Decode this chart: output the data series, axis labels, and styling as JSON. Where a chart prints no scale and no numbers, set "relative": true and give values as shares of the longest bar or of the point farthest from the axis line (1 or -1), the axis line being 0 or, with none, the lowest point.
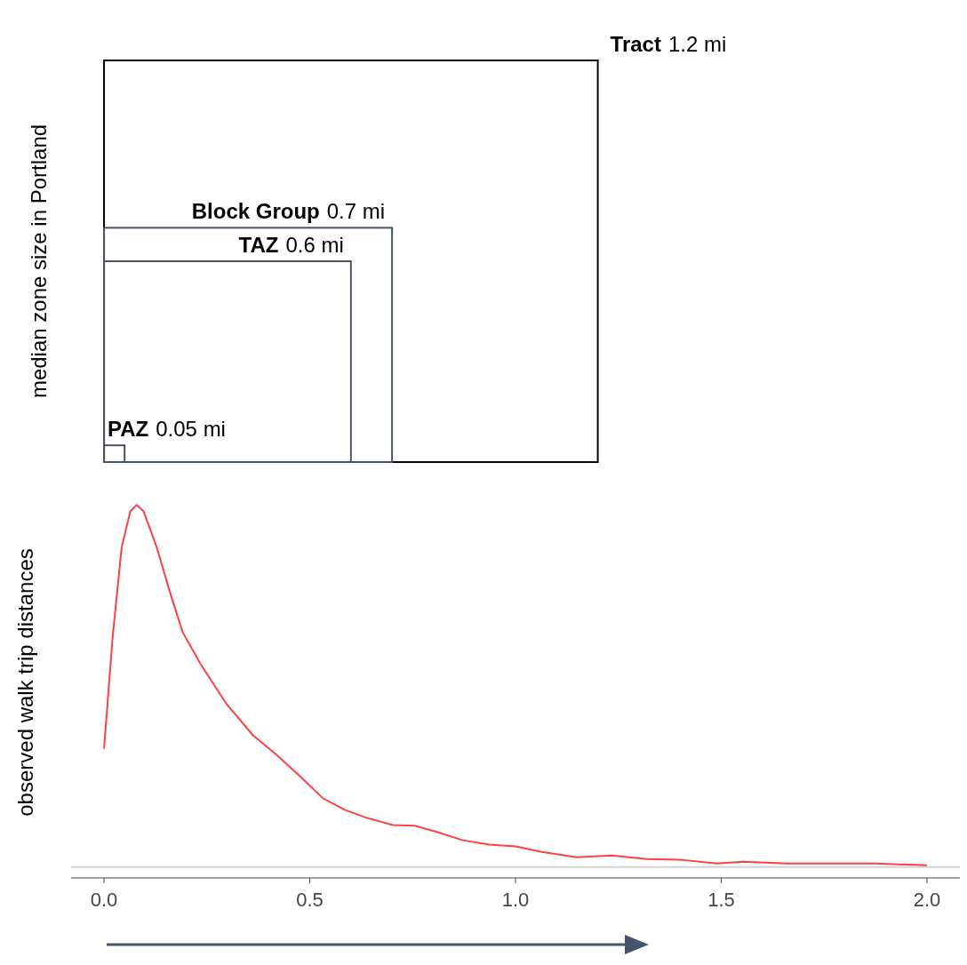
{
  "chart_data": [
    {
      "type": "other",
      "ylabel": "median zone size in Portland",
      "categories": [
        "Tract",
        "Block Group",
        "TAZ",
        "PAZ"
      ],
      "values": [
        1.2,
        0.7,
        0.6,
        0.05
      ],
      "value_labels": [
        "1.2 mi",
        "0.7 mi",
        "0.6 mi",
        "0.05 mi"
      ]
    },
    {
      "type": "line",
      "relative": true,
      "ylabel": "observed walk trip distances",
      "xlim": [
        -0.08,
        2.08
      ],
      "xticks": [
        {
          "value": 0,
          "label": "0.0"
        },
        {
          "value": 0.5,
          "label": "0.5"
        },
        {
          "value": 1,
          "label": "1.0"
        },
        {
          "value": 1.5,
          "label": "1.5"
        },
        {
          "value": 2,
          "label": "2.0"
        }
      ],
      "x": [
        0,
        0.021,
        0.043,
        0.064,
        0.079,
        0.096,
        0.128,
        0.16,
        0.191,
        0.234,
        0.298,
        0.362,
        0.415,
        0.479,
        0.532,
        0.585,
        0.638,
        0.702,
        0.755,
        0.809,
        0.872,
        0.936,
        1.0,
        1.064,
        1.149,
        1.234,
        1.319,
        1.404,
        1.489,
        1.553,
        1.66,
        1.872,
        2.0
      ],
      "series": [
        {
          "color": "#ff4040",
          "values": [
            0.327,
            0.636,
            0.884,
            0.983,
            1.0,
            0.983,
            0.884,
            0.76,
            0.649,
            0.562,
            0.45,
            0.364,
            0.314,
            0.248,
            0.19,
            0.158,
            0.136,
            0.116,
            0.114,
            0.097,
            0.074,
            0.062,
            0.057,
            0.042,
            0.027,
            0.032,
            0.022,
            0.02,
            0.01,
            0.015,
            0.01,
            0.01,
            0.005
          ]
        }
      ],
      "ref_lines": [
        {
          "axis": "y",
          "value": 0,
          "color": "#d3d3d3"
        }
      ],
      "grid": false,
      "legend": false
    }
  ]
}
